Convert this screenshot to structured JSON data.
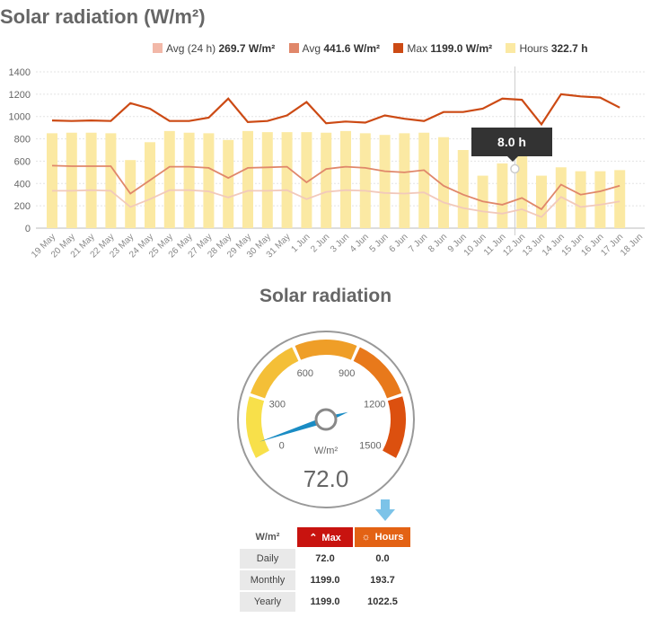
{
  "header": {
    "title": "Solar radiation (W/m²)"
  },
  "legend": [
    {
      "label": "Avg (24 h)",
      "value": "269.7 W/m²",
      "color": "#f2b8a8"
    },
    {
      "label": "Avg",
      "value": "441.6 W/m²",
      "color": "#e0876a"
    },
    {
      "label": "Max",
      "value": "1199.0 W/m²",
      "color": "#cc4a14"
    },
    {
      "label": "Hours",
      "value": "322.7 h",
      "color": "#fbe9a3"
    }
  ],
  "tooltip": {
    "text": "8.0 h"
  },
  "chart_data": {
    "type": "line",
    "categories": [
      "19 May",
      "20 May",
      "21 May",
      "22 May",
      "23 May",
      "24 May",
      "25 May",
      "26 May",
      "27 May",
      "28 May",
      "29 May",
      "30 May",
      "31 May",
      "1 Jun",
      "2 Jun",
      "3 Jun",
      "4 Jun",
      "5 Jun",
      "6 Jun",
      "7 Jun",
      "8 Jun",
      "9 Jun",
      "10 Jun",
      "11 Jun",
      "12 Jun",
      "13 Jun",
      "14 Jun",
      "15 Jun",
      "16 Jun",
      "17 Jun",
      "18 Jun"
    ],
    "ylim": [
      0,
      1400
    ],
    "yticks": [
      "0",
      "200",
      "400",
      "600",
      "800",
      "1000",
      "1200",
      "1400"
    ],
    "grid": true,
    "legend_position": "top-right",
    "series": [
      {
        "name": "Hours",
        "kind": "bar",
        "color": "#fbe9a3",
        "values": [
          850,
          855,
          855,
          850,
          610,
          770,
          870,
          855,
          850,
          790,
          870,
          860,
          860,
          860,
          855,
          870,
          850,
          835,
          850,
          855,
          815,
          700,
          470,
          580,
          650,
          470,
          545,
          510,
          510,
          520,
          null
        ]
      },
      {
        "name": "Max",
        "kind": "line",
        "color": "#cc4a14",
        "values": [
          965,
          960,
          965,
          960,
          1120,
          1070,
          960,
          960,
          990,
          1160,
          950,
          960,
          1010,
          1130,
          940,
          955,
          945,
          1010,
          980,
          960,
          1040,
          1040,
          1070,
          1160,
          1150,
          930,
          1200,
          1180,
          1170,
          1080,
          null
        ]
      },
      {
        "name": "Avg",
        "kind": "line",
        "color": "#e0876a",
        "values": [
          560,
          555,
          555,
          555,
          310,
          430,
          550,
          550,
          540,
          450,
          540,
          545,
          550,
          410,
          530,
          550,
          540,
          510,
          500,
          520,
          380,
          300,
          240,
          210,
          270,
          170,
          390,
          300,
          330,
          380,
          null
        ]
      },
      {
        "name": "Avg (24 h)",
        "kind": "line",
        "color": "#f2c9bb",
        "values": [
          335,
          335,
          340,
          335,
          190,
          260,
          340,
          340,
          330,
          275,
          335,
          335,
          340,
          260,
          325,
          340,
          335,
          315,
          310,
          320,
          230,
          180,
          150,
          130,
          170,
          100,
          280,
          190,
          210,
          240,
          null
        ]
      }
    ]
  },
  "gauge": {
    "title": "Solar radiation",
    "unit": "W/m²",
    "value_text": "72.0",
    "value": 72,
    "min": 0,
    "max": 1500,
    "ticks": [
      "0",
      "300",
      "600",
      "900",
      "1200",
      "1500"
    ]
  },
  "stats": {
    "unit_header": "W/m²",
    "max_header": "Max",
    "hours_header": "Hours",
    "rows": [
      {
        "label": "Daily",
        "max": "72.0",
        "hours": "0.0"
      },
      {
        "label": "Monthly",
        "max": "1199.0",
        "hours": "193.7"
      },
      {
        "label": "Yearly",
        "max": "1199.0",
        "hours": "1022.5"
      }
    ]
  }
}
